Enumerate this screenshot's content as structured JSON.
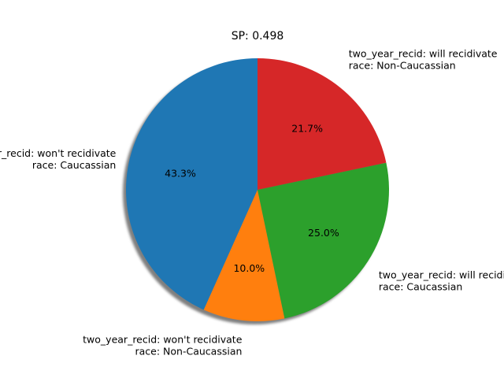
{
  "chart_data": {
    "type": "pie",
    "title": "SP: 0.498",
    "start_angle_deg": 90,
    "direction": "counterclockwise",
    "shadow": true,
    "slices": [
      {
        "label_lines": [
          "two_year_recid: won't recidivate",
          "race: Caucassian"
        ],
        "value": 43.3,
        "pct_text": "43.3%",
        "color": "#1f77b4"
      },
      {
        "label_lines": [
          "two_year_recid: won't recidivate",
          "race: Non-Caucassian"
        ],
        "value": 10.0,
        "pct_text": "10.0%",
        "color": "#ff7f0e"
      },
      {
        "label_lines": [
          "two_year_recid: will recidivate",
          "race: Caucassian"
        ],
        "value": 25.0,
        "pct_text": "25.0%",
        "color": "#2ca02c"
      },
      {
        "label_lines": [
          "two_year_recid: will recidivate",
          "race: Non-Caucassian"
        ],
        "value": 21.7,
        "pct_text": "21.7%",
        "color": "#d62728"
      }
    ]
  }
}
